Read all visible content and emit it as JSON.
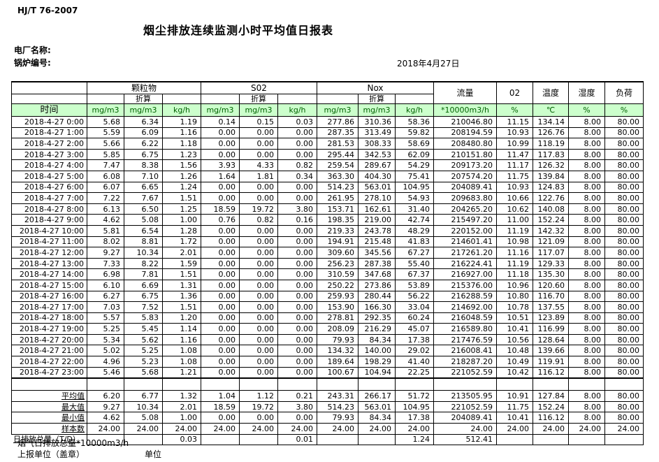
{
  "page": {
    "doc_code": "HJ/T  76-2007",
    "title": "烟尘排放连续监测小时平均值日报表",
    "plant_label": "电厂名称:",
    "boiler_label": "锅炉编号:",
    "date": "2018年4月27日"
  },
  "colors": {
    "unit_row_bg": "#ccffcc",
    "unit_row_text": "#006100",
    "border": "#000000"
  },
  "table": {
    "time_header": "时间",
    "groups": [
      {
        "label": "颗粒物",
        "sub": "折算"
      },
      {
        "label": "S02",
        "sub": "折算"
      },
      {
        "label": "Nox",
        "sub": "折算"
      },
      {
        "label": "流量"
      },
      {
        "label": "02"
      },
      {
        "label": "温度"
      },
      {
        "label": "湿度"
      },
      {
        "label": "负荷"
      }
    ],
    "units": [
      "mg/m3",
      "mg/m3",
      "kg/h",
      "mg/m3",
      "mg/m3",
      "kg/h",
      "mg/m3",
      "mg/m3",
      "kg/h",
      "*10000m3/h",
      "%",
      "℃",
      "%",
      "%"
    ],
    "rows": [
      {
        "time": "2018-4-27  0:00",
        "values": [
          "5.68",
          "6.34",
          "1.19",
          "0.14",
          "0.15",
          "0.03",
          "277.86",
          "310.36",
          "58.36",
          "210046.80",
          "11.15",
          "134.14",
          "8.00",
          "80.00"
        ]
      },
      {
        "time": "2018-4-27  1:00",
        "values": [
          "5.59",
          "6.09",
          "1.16",
          "0.00",
          "0.00",
          "0.00",
          "287.35",
          "313.49",
          "59.82",
          "208194.59",
          "10.93",
          "126.76",
          "8.00",
          "80.00"
        ]
      },
      {
        "time": "2018-4-27  2:00",
        "values": [
          "5.66",
          "6.22",
          "1.18",
          "0.00",
          "0.00",
          "0.00",
          "281.53",
          "308.33",
          "58.69",
          "208480.80",
          "10.99",
          "118.19",
          "8.00",
          "80.00"
        ]
      },
      {
        "time": "2018-4-27  3:00",
        "values": [
          "5.85",
          "6.75",
          "1.23",
          "0.00",
          "0.00",
          "0.00",
          "295.44",
          "342.53",
          "62.09",
          "210151.80",
          "11.47",
          "117.83",
          "8.00",
          "80.00"
        ]
      },
      {
        "time": "2018-4-27  4:00",
        "values": [
          "7.47",
          "8.38",
          "1.56",
          "3.93",
          "4.33",
          "0.82",
          "259.54",
          "289.67",
          "54.29",
          "209173.20",
          "11.17",
          "126.32",
          "8.00",
          "80.00"
        ]
      },
      {
        "time": "2018-4-27  5:00",
        "values": [
          "6.08",
          "7.10",
          "1.26",
          "1.64",
          "1.81",
          "0.34",
          "363.30",
          "404.30",
          "75.41",
          "207574.20",
          "11.75",
          "139.84",
          "8.00",
          "80.00"
        ]
      },
      {
        "time": "2018-4-27  6:00",
        "values": [
          "6.07",
          "6.65",
          "1.24",
          "0.00",
          "0.00",
          "0.00",
          "514.23",
          "563.01",
          "104.95",
          "204089.41",
          "10.93",
          "124.83",
          "8.00",
          "80.00"
        ]
      },
      {
        "time": "2018-4-27  7:00",
        "values": [
          "7.22",
          "7.67",
          "1.51",
          "0.00",
          "0.00",
          "0.00",
          "261.95",
          "278.10",
          "54.93",
          "209683.80",
          "10.66",
          "122.76",
          "8.00",
          "80.00"
        ]
      },
      {
        "time": "2018-4-27  8:00",
        "values": [
          "6.13",
          "6.50",
          "1.25",
          "18.59",
          "19.72",
          "3.80",
          "153.71",
          "162.61",
          "31.40",
          "204265.20",
          "10.62",
          "140.08",
          "8.00",
          "80.00"
        ]
      },
      {
        "time": "2018-4-27  9:00",
        "values": [
          "4.62",
          "5.08",
          "1.00",
          "0.76",
          "0.82",
          "0.16",
          "198.35",
          "219.00",
          "42.74",
          "215497.20",
          "11.00",
          "152.24",
          "8.00",
          "80.00"
        ]
      },
      {
        "time": "2018-4-27 10:00",
        "values": [
          "5.81",
          "6.54",
          "1.28",
          "0.00",
          "0.00",
          "0.00",
          "219.33",
          "243.78",
          "48.29",
          "220152.00",
          "11.19",
          "142.32",
          "8.00",
          "80.00"
        ]
      },
      {
        "time": "2018-4-27 11:00",
        "values": [
          "8.02",
          "8.81",
          "1.72",
          "0.00",
          "0.00",
          "0.00",
          "194.91",
          "215.48",
          "41.83",
          "214601.41",
          "10.98",
          "121.09",
          "8.00",
          "80.00"
        ]
      },
      {
        "time": "2018-4-27 12:00",
        "values": [
          "9.27",
          "10.34",
          "2.01",
          "0.00",
          "0.00",
          "0.00",
          "309.60",
          "345.56",
          "67.27",
          "217261.20",
          "11.16",
          "117.07",
          "8.00",
          "80.00"
        ]
      },
      {
        "time": "2018-4-27 13:00",
        "values": [
          "7.33",
          "8.22",
          "1.59",
          "0.00",
          "0.00",
          "0.00",
          "256.23",
          "287.38",
          "55.40",
          "216224.41",
          "11.19",
          "129.33",
          "8.00",
          "80.00"
        ]
      },
      {
        "time": "2018-4-27 14:00",
        "values": [
          "6.98",
          "7.81",
          "1.51",
          "0.00",
          "0.00",
          "0.00",
          "310.59",
          "347.68",
          "67.37",
          "216927.00",
          "11.18",
          "135.30",
          "8.00",
          "80.00"
        ]
      },
      {
        "time": "2018-4-27 15:00",
        "values": [
          "6.10",
          "6.69",
          "1.31",
          "0.00",
          "0.00",
          "0.00",
          "250.22",
          "273.86",
          "53.89",
          "215376.00",
          "10.96",
          "120.60",
          "8.00",
          "80.00"
        ]
      },
      {
        "time": "2018-4-27 16:00",
        "values": [
          "6.27",
          "6.75",
          "1.36",
          "0.00",
          "0.00",
          "0.00",
          "259.93",
          "280.44",
          "56.22",
          "216288.59",
          "10.80",
          "116.70",
          "8.00",
          "80.00"
        ]
      },
      {
        "time": "2018-4-27 17:00",
        "values": [
          "7.03",
          "7.52",
          "1.51",
          "0.00",
          "0.00",
          "0.00",
          "153.90",
          "166.30",
          "33.04",
          "214692.00",
          "10.78",
          "137.55",
          "8.00",
          "80.00"
        ]
      },
      {
        "time": "2018-4-27 18:00",
        "values": [
          "5.57",
          "5.83",
          "1.20",
          "0.00",
          "0.00",
          "0.00",
          "278.81",
          "292.35",
          "60.24",
          "216048.59",
          "10.51",
          "123.89",
          "8.00",
          "80.00"
        ]
      },
      {
        "time": "2018-4-27 19:00",
        "values": [
          "5.25",
          "5.45",
          "1.14",
          "0.00",
          "0.00",
          "0.00",
          "208.09",
          "216.29",
          "45.07",
          "216589.80",
          "10.41",
          "116.99",
          "8.00",
          "80.00"
        ]
      },
      {
        "time": "2018-4-27 20:00",
        "values": [
          "5.34",
          "5.62",
          "1.16",
          "0.00",
          "0.00",
          "0.00",
          "79.93",
          "84.34",
          "17.38",
          "217476.59",
          "10.56",
          "128.64",
          "8.00",
          "80.00"
        ]
      },
      {
        "time": "2018-4-27 21:00",
        "values": [
          "5.02",
          "5.25",
          "1.08",
          "0.00",
          "0.00",
          "0.00",
          "134.32",
          "140.00",
          "29.02",
          "216008.41",
          "10.48",
          "139.66",
          "8.00",
          "80.00"
        ]
      },
      {
        "time": "2018-4-27 22:00",
        "values": [
          "4.96",
          "5.23",
          "1.08",
          "0.00",
          "0.00",
          "0.00",
          "189.64",
          "198.29",
          "41.40",
          "218287.20",
          "10.49",
          "119.91",
          "8.00",
          "80.00"
        ]
      },
      {
        "time": "2018-4-27 23:00",
        "values": [
          "5.46",
          "5.68",
          "1.21",
          "0.00",
          "0.00",
          "0.00",
          "100.67",
          "104.94",
          "22.25",
          "221052.59",
          "10.42",
          "116.12",
          "8.00",
          "80.00"
        ]
      }
    ],
    "summary": [
      {
        "label": "平均值",
        "values": [
          "6.20",
          "6.77",
          "1.32",
          "1.04",
          "1.12",
          "0.21",
          "243.31",
          "266.17",
          "51.72",
          "213505.95",
          "10.91",
          "127.84",
          "8.00",
          "80.00"
        ]
      },
      {
        "label": "最大值",
        "values": [
          "9.27",
          "10.34",
          "2.01",
          "18.59",
          "19.72",
          "3.80",
          "514.23",
          "563.01",
          "104.95",
          "221052.59",
          "11.75",
          "152.24",
          "8.00",
          "80.00"
        ]
      },
      {
        "label": "最小值",
        "values": [
          "4.62",
          "5.08",
          "1.00",
          "0.00",
          "0.00",
          "0.00",
          "79.93",
          "84.34",
          "17.38",
          "204089.41",
          "10.41",
          "116.12",
          "8.00",
          "80.00"
        ]
      },
      {
        "label": "样本数",
        "values": [
          "24.00",
          "24.00",
          "24.00",
          "24.00",
          "24.00",
          "24.00",
          "24.00",
          "24.00",
          "24.00",
          "24.00",
          "24.00",
          "24.00",
          "24.00",
          "24.00"
        ]
      },
      {
        "label": "日排放总量（T/D）",
        "values": [
          "",
          "",
          "0.03",
          "",
          "",
          "0.01",
          "",
          "",
          "1.24",
          "512.41",
          "",
          "",
          "",
          ""
        ]
      }
    ]
  },
  "footer": {
    "flue_total": "烟气日排放总量*10000m3/h",
    "report_unit": "上报单位（盖章）",
    "unit": "单位"
  }
}
